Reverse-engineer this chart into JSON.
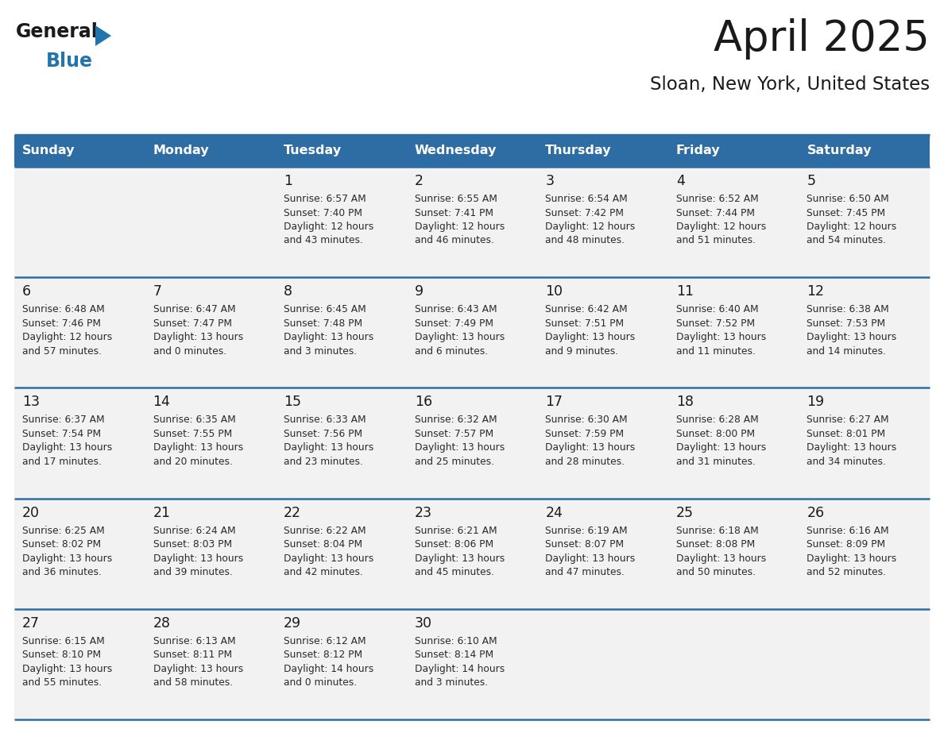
{
  "title": "April 2025",
  "subtitle": "Sloan, New York, United States",
  "header_bg": "#2E6DA4",
  "header_text_color": "#FFFFFF",
  "cell_bg": "#EFEFEF",
  "row1_bg": "#F5F5F5",
  "day_number_color": "#1a1a1a",
  "text_color": "#333333",
  "grid_line_color": "#2E6DA4",
  "border_line_color": "#2E6DA4",
  "days_of_week": [
    "Sunday",
    "Monday",
    "Tuesday",
    "Wednesday",
    "Thursday",
    "Friday",
    "Saturday"
  ],
  "weeks": [
    [
      {
        "day": "",
        "info": ""
      },
      {
        "day": "",
        "info": ""
      },
      {
        "day": "1",
        "info": "Sunrise: 6:57 AM\nSunset: 7:40 PM\nDaylight: 12 hours\nand 43 minutes."
      },
      {
        "day": "2",
        "info": "Sunrise: 6:55 AM\nSunset: 7:41 PM\nDaylight: 12 hours\nand 46 minutes."
      },
      {
        "day": "3",
        "info": "Sunrise: 6:54 AM\nSunset: 7:42 PM\nDaylight: 12 hours\nand 48 minutes."
      },
      {
        "day": "4",
        "info": "Sunrise: 6:52 AM\nSunset: 7:44 PM\nDaylight: 12 hours\nand 51 minutes."
      },
      {
        "day": "5",
        "info": "Sunrise: 6:50 AM\nSunset: 7:45 PM\nDaylight: 12 hours\nand 54 minutes."
      }
    ],
    [
      {
        "day": "6",
        "info": "Sunrise: 6:48 AM\nSunset: 7:46 PM\nDaylight: 12 hours\nand 57 minutes."
      },
      {
        "day": "7",
        "info": "Sunrise: 6:47 AM\nSunset: 7:47 PM\nDaylight: 13 hours\nand 0 minutes."
      },
      {
        "day": "8",
        "info": "Sunrise: 6:45 AM\nSunset: 7:48 PM\nDaylight: 13 hours\nand 3 minutes."
      },
      {
        "day": "9",
        "info": "Sunrise: 6:43 AM\nSunset: 7:49 PM\nDaylight: 13 hours\nand 6 minutes."
      },
      {
        "day": "10",
        "info": "Sunrise: 6:42 AM\nSunset: 7:51 PM\nDaylight: 13 hours\nand 9 minutes."
      },
      {
        "day": "11",
        "info": "Sunrise: 6:40 AM\nSunset: 7:52 PM\nDaylight: 13 hours\nand 11 minutes."
      },
      {
        "day": "12",
        "info": "Sunrise: 6:38 AM\nSunset: 7:53 PM\nDaylight: 13 hours\nand 14 minutes."
      }
    ],
    [
      {
        "day": "13",
        "info": "Sunrise: 6:37 AM\nSunset: 7:54 PM\nDaylight: 13 hours\nand 17 minutes."
      },
      {
        "day": "14",
        "info": "Sunrise: 6:35 AM\nSunset: 7:55 PM\nDaylight: 13 hours\nand 20 minutes."
      },
      {
        "day": "15",
        "info": "Sunrise: 6:33 AM\nSunset: 7:56 PM\nDaylight: 13 hours\nand 23 minutes."
      },
      {
        "day": "16",
        "info": "Sunrise: 6:32 AM\nSunset: 7:57 PM\nDaylight: 13 hours\nand 25 minutes."
      },
      {
        "day": "17",
        "info": "Sunrise: 6:30 AM\nSunset: 7:59 PM\nDaylight: 13 hours\nand 28 minutes."
      },
      {
        "day": "18",
        "info": "Sunrise: 6:28 AM\nSunset: 8:00 PM\nDaylight: 13 hours\nand 31 minutes."
      },
      {
        "day": "19",
        "info": "Sunrise: 6:27 AM\nSunset: 8:01 PM\nDaylight: 13 hours\nand 34 minutes."
      }
    ],
    [
      {
        "day": "20",
        "info": "Sunrise: 6:25 AM\nSunset: 8:02 PM\nDaylight: 13 hours\nand 36 minutes."
      },
      {
        "day": "21",
        "info": "Sunrise: 6:24 AM\nSunset: 8:03 PM\nDaylight: 13 hours\nand 39 minutes."
      },
      {
        "day": "22",
        "info": "Sunrise: 6:22 AM\nSunset: 8:04 PM\nDaylight: 13 hours\nand 42 minutes."
      },
      {
        "day": "23",
        "info": "Sunrise: 6:21 AM\nSunset: 8:06 PM\nDaylight: 13 hours\nand 45 minutes."
      },
      {
        "day": "24",
        "info": "Sunrise: 6:19 AM\nSunset: 8:07 PM\nDaylight: 13 hours\nand 47 minutes."
      },
      {
        "day": "25",
        "info": "Sunrise: 6:18 AM\nSunset: 8:08 PM\nDaylight: 13 hours\nand 50 minutes."
      },
      {
        "day": "26",
        "info": "Sunrise: 6:16 AM\nSunset: 8:09 PM\nDaylight: 13 hours\nand 52 minutes."
      }
    ],
    [
      {
        "day": "27",
        "info": "Sunrise: 6:15 AM\nSunset: 8:10 PM\nDaylight: 13 hours\nand 55 minutes."
      },
      {
        "day": "28",
        "info": "Sunrise: 6:13 AM\nSunset: 8:11 PM\nDaylight: 13 hours\nand 58 minutes."
      },
      {
        "day": "29",
        "info": "Sunrise: 6:12 AM\nSunset: 8:12 PM\nDaylight: 14 hours\nand 0 minutes."
      },
      {
        "day": "30",
        "info": "Sunrise: 6:10 AM\nSunset: 8:14 PM\nDaylight: 14 hours\nand 3 minutes."
      },
      {
        "day": "",
        "info": ""
      },
      {
        "day": "",
        "info": ""
      },
      {
        "day": "",
        "info": ""
      }
    ]
  ],
  "logo_color_general": "#1a1a1a",
  "logo_color_blue": "#2374AB",
  "logo_triangle_color": "#2374AB",
  "fig_width": 11.88,
  "fig_height": 9.18,
  "dpi": 100
}
